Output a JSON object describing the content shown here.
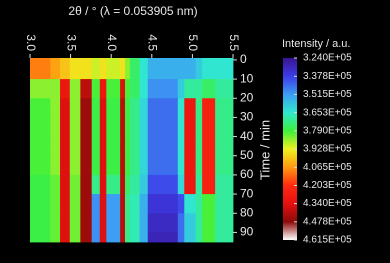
{
  "chart_data": {
    "type": "heatmap",
    "title": "2θ / ° (λ = 0.053905 nm)",
    "y_label": "Time / min",
    "colorbar_label": "Intensity / a.u.",
    "x_edges": [
      3.0,
      3.25,
      3.37,
      3.49,
      3.62,
      3.76,
      3.86,
      3.94,
      4.11,
      4.17,
      4.23,
      4.35,
      4.45,
      4.82,
      4.9,
      5.04,
      5.12,
      5.28,
      5.5
    ],
    "y_edges": [
      -1,
      10,
      20,
      30,
      40,
      50,
      60,
      70,
      80,
      90,
      95
    ],
    "z": [
      [
        410000,
        405000,
        400000,
        395000,
        395000,
        390000,
        395000,
        390000,
        395000,
        385000,
        375000,
        365000,
        355000,
        355000,
        355000,
        360000,
        365000,
        365000
      ],
      [
        385000,
        385000,
        430000,
        385000,
        440000,
        380000,
        430000,
        380000,
        435000,
        380000,
        375000,
        365000,
        350000,
        360000,
        370000,
        370000,
        375000,
        370000
      ],
      [
        380000,
        385000,
        435000,
        385000,
        445000,
        378000,
        435000,
        378000,
        440000,
        378000,
        372000,
        362000,
        345000,
        365000,
        430000,
        372000,
        425000,
        372000
      ],
      [
        380000,
        385000,
        435000,
        385000,
        445000,
        378000,
        435000,
        378000,
        440000,
        378000,
        372000,
        362000,
        345000,
        365000,
        430000,
        372000,
        425000,
        372000
      ],
      [
        380000,
        385000,
        435000,
        385000,
        445000,
        378000,
        435000,
        378000,
        440000,
        378000,
        372000,
        362000,
        345000,
        365000,
        430000,
        372000,
        425000,
        372000
      ],
      [
        380000,
        385000,
        435000,
        385000,
        445000,
        378000,
        435000,
        378000,
        440000,
        378000,
        372000,
        362000,
        345000,
        365000,
        430000,
        372000,
        425000,
        372000
      ],
      [
        378000,
        382000,
        435000,
        383000,
        445000,
        372000,
        435000,
        372000,
        440000,
        375000,
        370000,
        360000,
        340000,
        362000,
        430000,
        370000,
        425000,
        370000
      ],
      [
        378000,
        382000,
        435000,
        383000,
        445000,
        350000,
        435000,
        352000,
        440000,
        372000,
        368000,
        355000,
        335000,
        340000,
        365000,
        370000,
        380000,
        370000
      ],
      [
        378000,
        382000,
        435000,
        383000,
        445000,
        350000,
        435000,
        352000,
        440000,
        372000,
        368000,
        355000,
        332000,
        345000,
        360000,
        370000,
        380000,
        370000
      ],
      [
        378000,
        382000,
        435000,
        383000,
        445000,
        350000,
        435000,
        352000,
        440000,
        372000,
        368000,
        355000,
        330000,
        345000,
        360000,
        370000,
        380000,
        370000
      ]
    ],
    "xlim": [
      3.0,
      5.5
    ],
    "xticks": [
      {
        "value": 3.0,
        "label": "3.0"
      },
      3.5,
      {
        "value": 4.0,
        "label": "4.0"
      },
      4.5,
      {
        "value": 5.0,
        "label": "5.0"
      },
      5.5
    ],
    "ylim": [
      -1,
      95
    ],
    "yticks": [
      0,
      10,
      20,
      30,
      40,
      50,
      60,
      70,
      80,
      90
    ],
    "clim": [
      324000,
      461500
    ],
    "cticks": [
      {
        "value": 324000,
        "label": "3.240E+05"
      },
      {
        "value": 337800,
        "label": "3.378E+05"
      },
      {
        "value": 351500,
        "label": "3.515E+05"
      },
      {
        "value": 365300,
        "label": "3.653E+05"
      },
      {
        "value": 379000,
        "label": "3.790E+05"
      },
      {
        "value": 392800,
        "label": "3.928E+05"
      },
      {
        "value": 406500,
        "label": "4.065E+05"
      },
      {
        "value": 420300,
        "label": "4.203E+05"
      },
      {
        "value": 434000,
        "label": "4.340E+05"
      },
      {
        "value": 447800,
        "label": "4.478E+05"
      },
      {
        "value": 461500,
        "label": "4.615E+05"
      }
    ],
    "colors": [
      "#3a1490",
      "#3c3ce8",
      "#3c9cf4",
      "#30e8d0",
      "#3cf03c",
      "#f0f020",
      "#ff9a10",
      "#ff2a10",
      "#e41010",
      "#8c0a0a",
      "#ffffff"
    ]
  }
}
